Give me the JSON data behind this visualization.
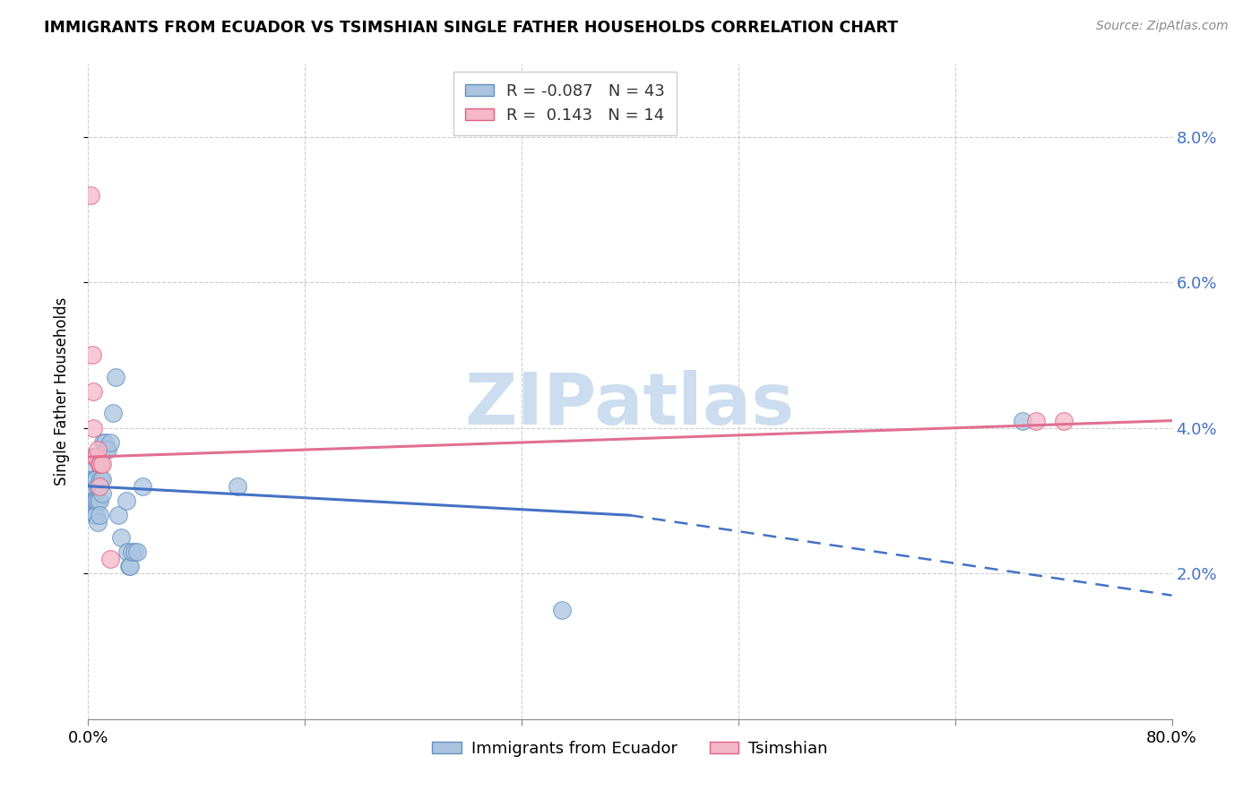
{
  "title": "IMMIGRANTS FROM ECUADOR VS TSIMSHIAN SINGLE FATHER HOUSEHOLDS CORRELATION CHART",
  "source": "Source: ZipAtlas.com",
  "ylabel": "Single Father Households",
  "xlim": [
    0.0,
    0.8
  ],
  "ylim": [
    0.0,
    0.09
  ],
  "yticks": [
    0.02,
    0.04,
    0.06,
    0.08
  ],
  "ytick_labels": [
    "2.0%",
    "4.0%",
    "6.0%",
    "8.0%"
  ],
  "xticks": [
    0.0,
    0.16,
    0.32,
    0.48,
    0.64,
    0.8
  ],
  "xtick_labels": [
    "0.0%",
    "",
    "",
    "",
    "",
    "80.0%"
  ],
  "legend_blue_label": "Immigrants from Ecuador",
  "legend_pink_label": "Tsimshian",
  "R_blue": -0.087,
  "N_blue": 43,
  "R_pink": 0.143,
  "N_pink": 14,
  "blue_color": "#aac4e0",
  "pink_color": "#f4b8c8",
  "blue_edge_color": "#6090c0",
  "pink_edge_color": "#e06080",
  "blue_line_color": "#4472c4",
  "pink_line_color": "#e07090",
  "blue_scatter": [
    [
      0.001,
      0.03
    ],
    [
      0.002,
      0.032
    ],
    [
      0.002,
      0.031
    ],
    [
      0.003,
      0.032
    ],
    [
      0.003,
      0.036
    ],
    [
      0.004,
      0.035
    ],
    [
      0.004,
      0.03
    ],
    [
      0.004,
      0.033
    ],
    [
      0.005,
      0.033
    ],
    [
      0.005,
      0.03
    ],
    [
      0.005,
      0.028
    ],
    [
      0.006,
      0.033
    ],
    [
      0.006,
      0.03
    ],
    [
      0.006,
      0.028
    ],
    [
      0.007,
      0.032
    ],
    [
      0.007,
      0.03
    ],
    [
      0.007,
      0.027
    ],
    [
      0.008,
      0.03
    ],
    [
      0.008,
      0.028
    ],
    [
      0.009,
      0.035
    ],
    [
      0.009,
      0.033
    ],
    [
      0.01,
      0.033
    ],
    [
      0.01,
      0.031
    ],
    [
      0.011,
      0.038
    ],
    [
      0.012,
      0.038
    ],
    [
      0.013,
      0.037
    ],
    [
      0.014,
      0.037
    ],
    [
      0.016,
      0.038
    ],
    [
      0.018,
      0.042
    ],
    [
      0.02,
      0.047
    ],
    [
      0.022,
      0.028
    ],
    [
      0.024,
      0.025
    ],
    [
      0.028,
      0.03
    ],
    [
      0.029,
      0.023
    ],
    [
      0.03,
      0.021
    ],
    [
      0.031,
      0.021
    ],
    [
      0.032,
      0.023
    ],
    [
      0.034,
      0.023
    ],
    [
      0.036,
      0.023
    ],
    [
      0.04,
      0.032
    ],
    [
      0.11,
      0.032
    ],
    [
      0.35,
      0.015
    ],
    [
      0.69,
      0.041
    ]
  ],
  "pink_scatter": [
    [
      0.002,
      0.072
    ],
    [
      0.003,
      0.05
    ],
    [
      0.004,
      0.045
    ],
    [
      0.004,
      0.04
    ],
    [
      0.005,
      0.036
    ],
    [
      0.006,
      0.036
    ],
    [
      0.007,
      0.037
    ],
    [
      0.008,
      0.035
    ],
    [
      0.008,
      0.032
    ],
    [
      0.009,
      0.035
    ],
    [
      0.01,
      0.035
    ],
    [
      0.7,
      0.041
    ],
    [
      0.72,
      0.041
    ],
    [
      0.016,
      0.022
    ]
  ],
  "blue_line_start_x": 0.0,
  "blue_line_start_y": 0.032,
  "blue_line_solid_end_x": 0.4,
  "blue_line_solid_end_y": 0.028,
  "blue_line_dash_end_x": 0.8,
  "blue_line_dash_end_y": 0.017,
  "pink_line_start_x": 0.0,
  "pink_line_start_y": 0.036,
  "pink_line_end_x": 0.8,
  "pink_line_end_y": 0.041,
  "watermark": "ZIPatlas",
  "watermark_color": "#ccddef"
}
